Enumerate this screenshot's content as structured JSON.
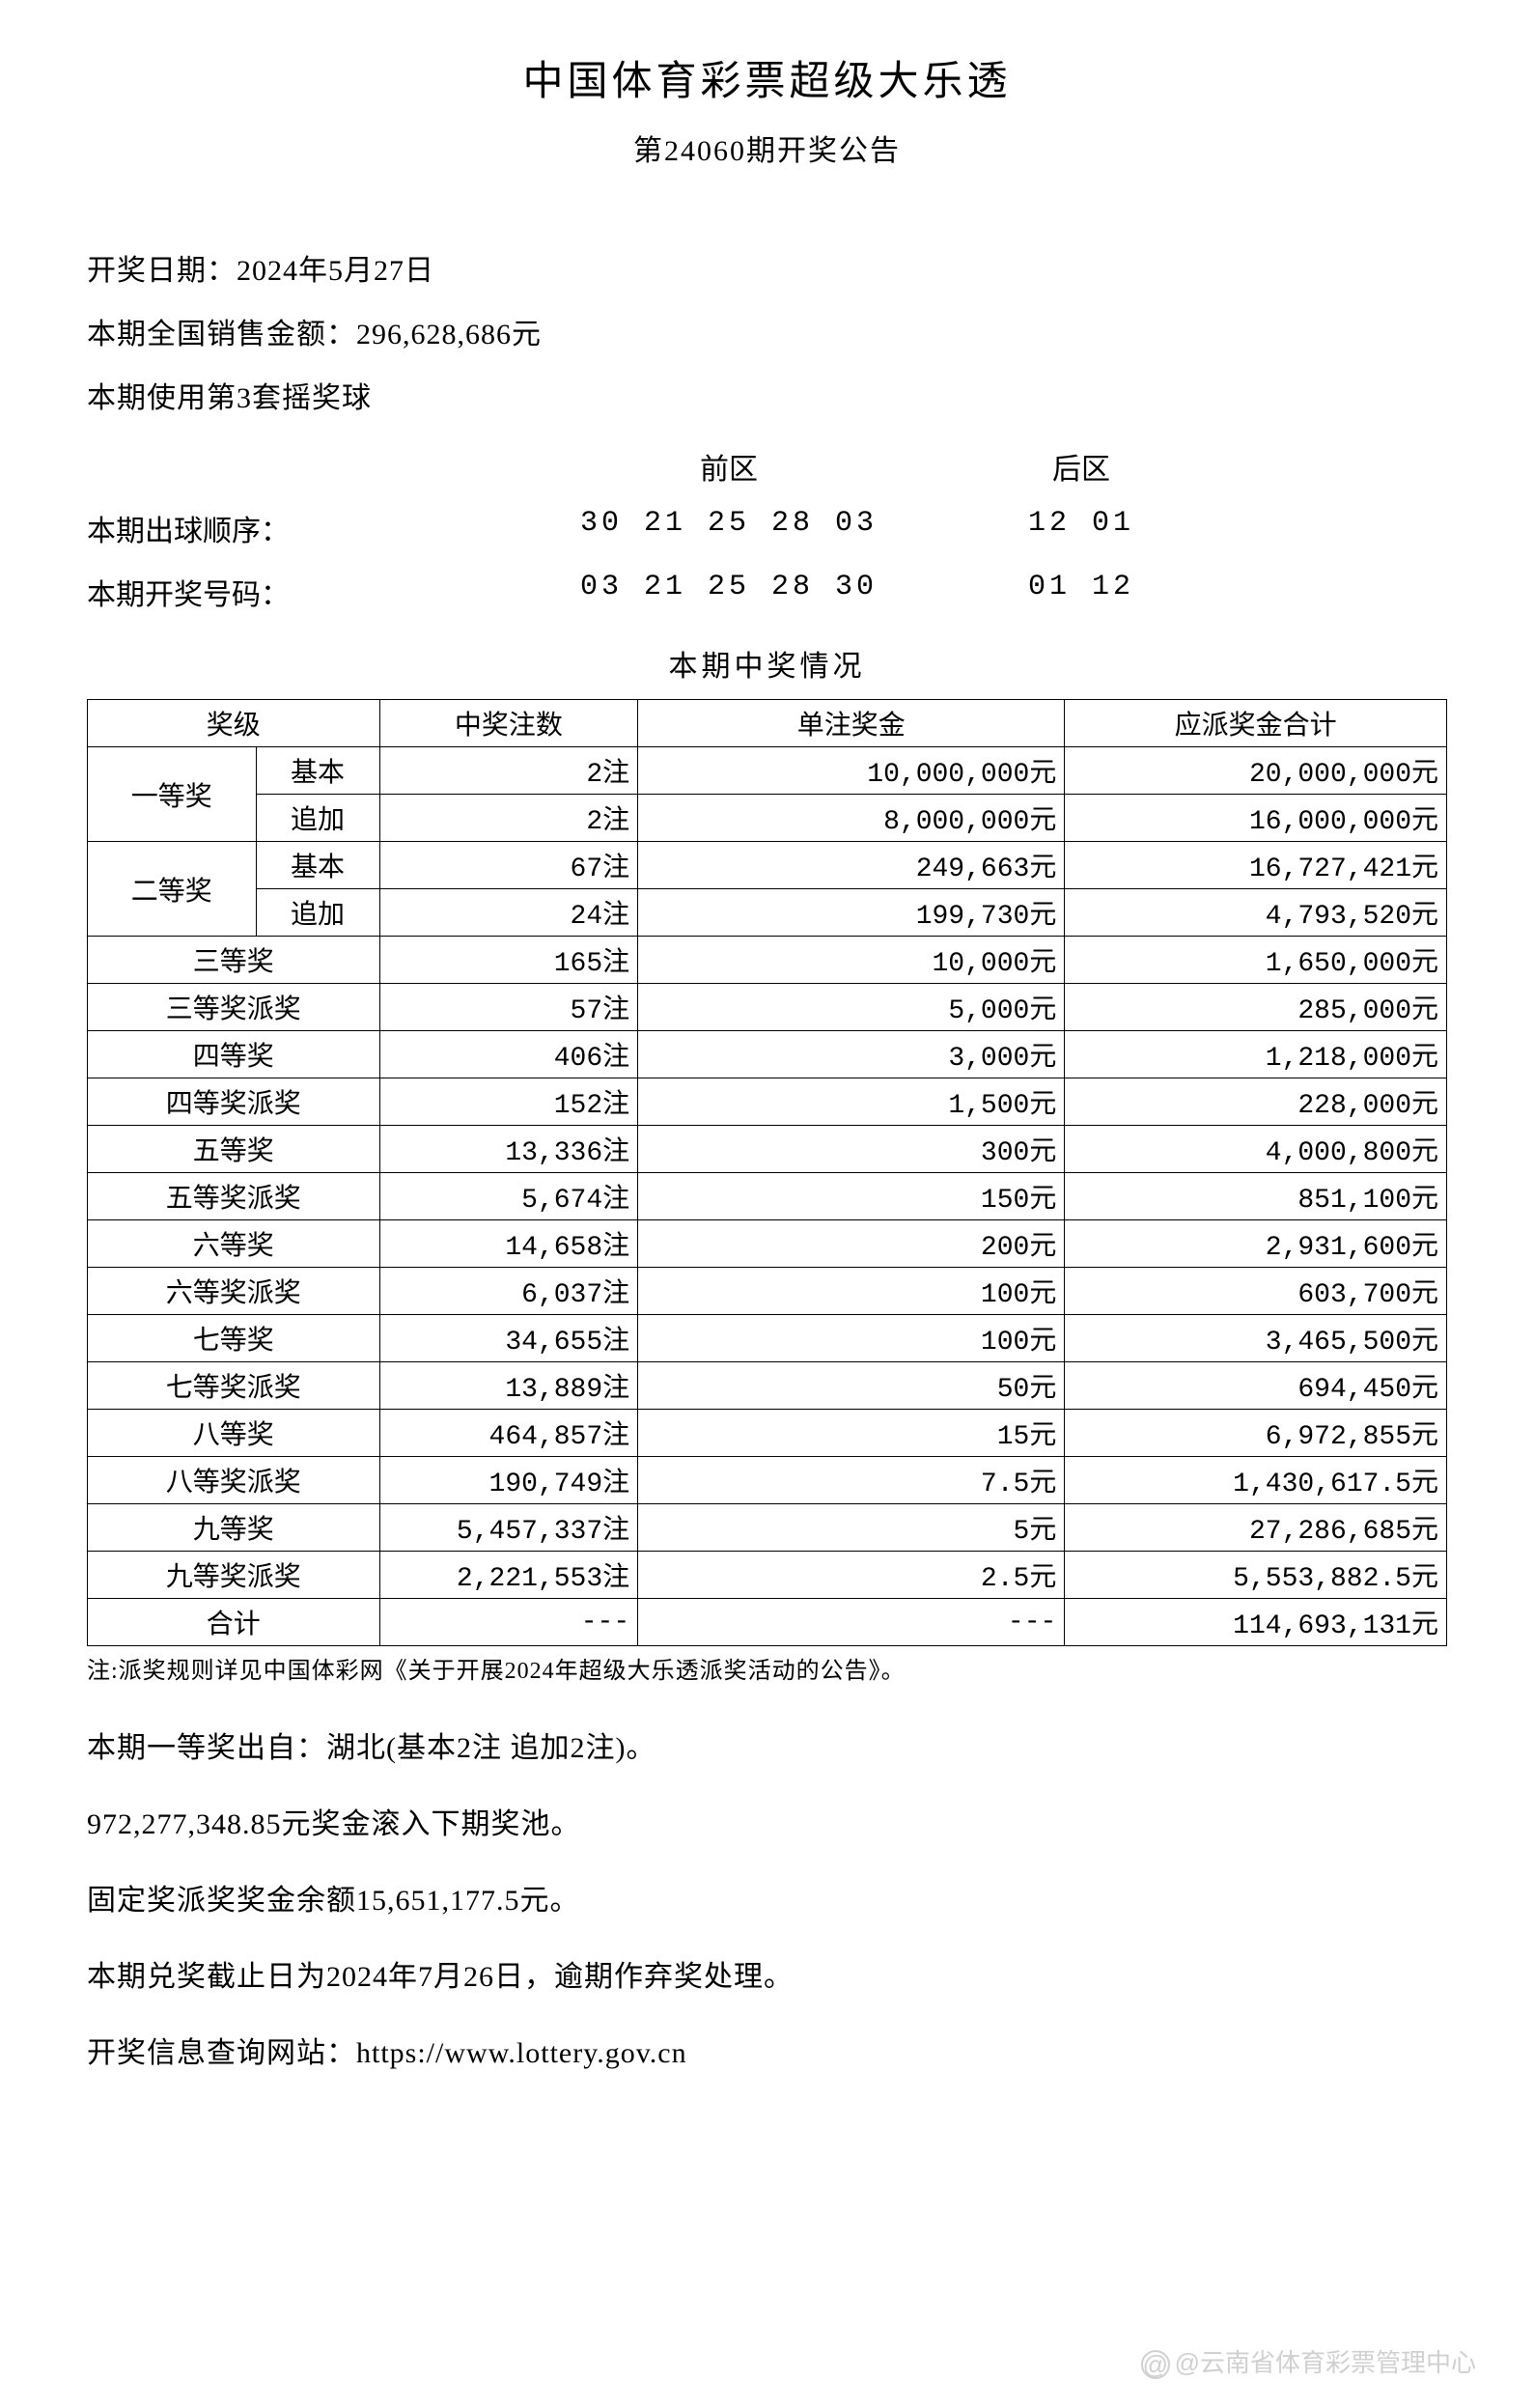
{
  "title": "中国体育彩票超级大乐透",
  "subtitle": "第24060期开奖公告",
  "info": {
    "draw_date_label": "开奖日期：",
    "draw_date": "2024年5月27日",
    "sales_label": "本期全国销售金额：",
    "sales_amount": "296,628,686元",
    "ball_set": "本期使用第3套摇奖球"
  },
  "numbers": {
    "front_header": "前区",
    "back_header": "后区",
    "draw_order_label": "本期出球顺序：",
    "draw_order_front": "30 21 25 28 03",
    "draw_order_back": "12 01",
    "winning_label": "本期开奖号码：",
    "winning_front": "03 21 25 28 30",
    "winning_back": "01 12"
  },
  "table_title": "本期中奖情况",
  "table": {
    "headers": {
      "level": "奖级",
      "count": "中奖注数",
      "unit_prize": "单注奖金",
      "total_prize": "应派奖金合计"
    },
    "basic_label": "基本",
    "addon_label": "追加",
    "first_prize_label": "一等奖",
    "second_prize_label": "二等奖",
    "rows": [
      {
        "level": "一等奖",
        "sub": "基本",
        "count": "2注",
        "unit": "10,000,000元",
        "total": "20,000,000元"
      },
      {
        "level": "一等奖",
        "sub": "追加",
        "count": "2注",
        "unit": "8,000,000元",
        "total": "16,000,000元"
      },
      {
        "level": "二等奖",
        "sub": "基本",
        "count": "67注",
        "unit": "249,663元",
        "total": "16,727,421元"
      },
      {
        "level": "二等奖",
        "sub": "追加",
        "count": "24注",
        "unit": "199,730元",
        "total": "4,793,520元"
      },
      {
        "level": "三等奖",
        "count": "165注",
        "unit": "10,000元",
        "total": "1,650,000元"
      },
      {
        "level": "三等奖派奖",
        "count": "57注",
        "unit": "5,000元",
        "total": "285,000元"
      },
      {
        "level": "四等奖",
        "count": "406注",
        "unit": "3,000元",
        "total": "1,218,000元"
      },
      {
        "level": "四等奖派奖",
        "count": "152注",
        "unit": "1,500元",
        "total": "228,000元"
      },
      {
        "level": "五等奖",
        "count": "13,336注",
        "unit": "300元",
        "total": "4,000,800元"
      },
      {
        "level": "五等奖派奖",
        "count": "5,674注",
        "unit": "150元",
        "total": "851,100元"
      },
      {
        "level": "六等奖",
        "count": "14,658注",
        "unit": "200元",
        "total": "2,931,600元"
      },
      {
        "level": "六等奖派奖",
        "count": "6,037注",
        "unit": "100元",
        "total": "603,700元"
      },
      {
        "level": "七等奖",
        "count": "34,655注",
        "unit": "100元",
        "total": "3,465,500元"
      },
      {
        "level": "七等奖派奖",
        "count": "13,889注",
        "unit": "50元",
        "total": "694,450元"
      },
      {
        "level": "八等奖",
        "count": "464,857注",
        "unit": "15元",
        "total": "6,972,855元"
      },
      {
        "level": "八等奖派奖",
        "count": "190,749注",
        "unit": "7.5元",
        "total": "1,430,617.5元"
      },
      {
        "level": "九等奖",
        "count": "5,457,337注",
        "unit": "5元",
        "total": "27,286,685元"
      },
      {
        "level": "九等奖派奖",
        "count": "2,221,553注",
        "unit": "2.5元",
        "total": "5,553,882.5元"
      },
      {
        "level": "合计",
        "count": "---",
        "unit": "---",
        "total": "114,693,131元"
      }
    ]
  },
  "footnote": "注:派奖规则详见中国体彩网《关于开展2024年超级大乐透派奖活动的公告》。",
  "footer": {
    "line1": "本期一等奖出自：湖北(基本2注 追加2注)。",
    "line2": "972,277,348.85元奖金滚入下期奖池。",
    "line3": "固定奖派奖奖金余额15,651,177.5元。",
    "line4": "本期兑奖截止日为2024年7月26日，逾期作弃奖处理。",
    "line5": "开奖信息查询网站：https://www.lottery.gov.cn"
  },
  "watermark": "@云南省体育彩票管理中心"
}
